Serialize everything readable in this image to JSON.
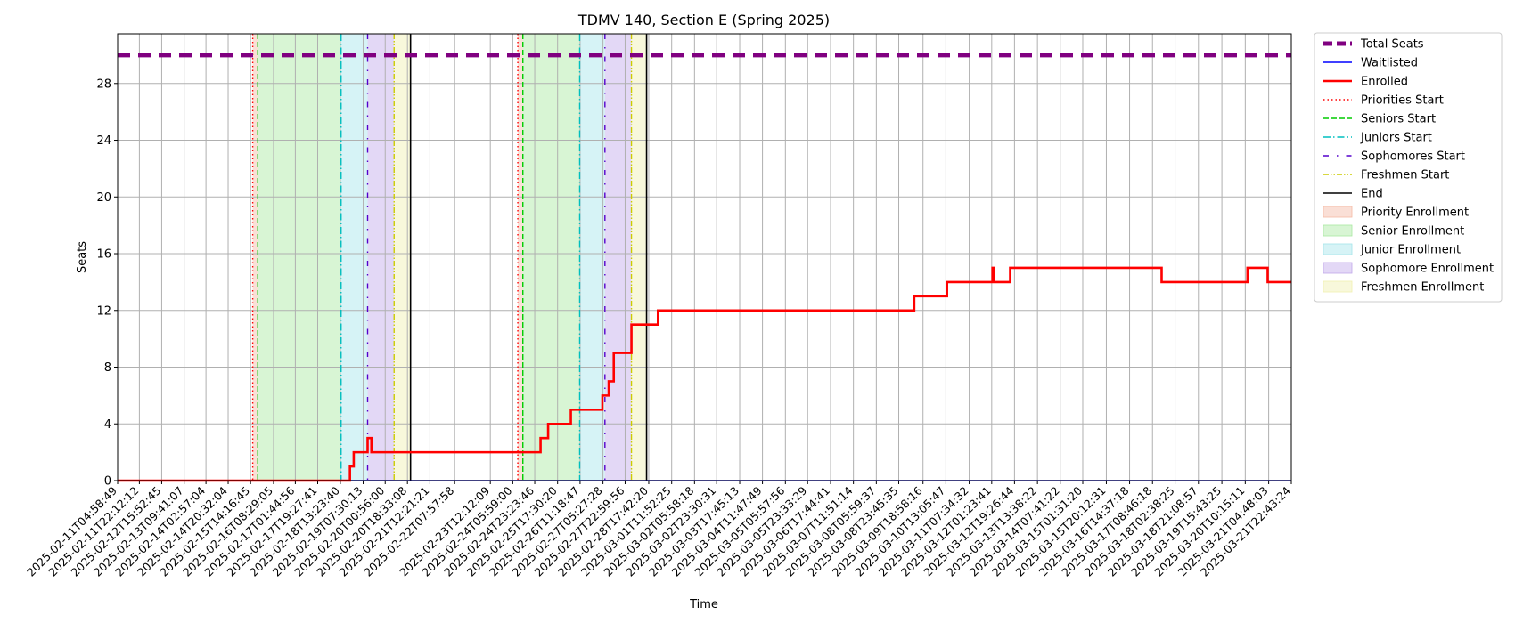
{
  "chart_data": {
    "type": "line",
    "title": "TDMV 140, Section E (Spring 2025)",
    "xlabel": "Time",
    "ylabel": "Seats",
    "ylim": [
      0,
      31.5
    ],
    "yticks": [
      0,
      4,
      8,
      12,
      16,
      20,
      24,
      28
    ],
    "xticks": [
      "2025-02-11T04:58:49",
      "2025-02-11T22:12:12",
      "2025-02-12T15:52:45",
      "2025-02-13T09:41:07",
      "2025-02-14T02:57:04",
      "2025-02-14T20:32:04",
      "2025-02-15T14:16:45",
      "2025-02-16T08:29:05",
      "2025-02-17T01:44:56",
      "2025-02-17T19:27:41",
      "2025-02-18T13:23:40",
      "2025-02-19T07:30:13",
      "2025-02-20T00:56:00",
      "2025-02-20T18:33:08",
      "2025-02-21T12:21:21",
      "2025-02-22T07:57:58",
      "2025-02-23T12:12:09",
      "2025-02-24T05:59:00",
      "2025-02-24T23:23:46",
      "2025-02-25T17:30:20",
      "2025-02-26T11:18:47",
      "2025-02-27T05:27:28",
      "2025-02-27T22:59:56",
      "2025-02-28T17:42:20",
      "2025-03-01T11:52:25",
      "2025-03-02T05:58:18",
      "2025-03-02T23:30:31",
      "2025-03-03T17:45:13",
      "2025-03-04T11:47:49",
      "2025-03-05T05:57:56",
      "2025-03-05T23:33:29",
      "2025-03-06T17:44:41",
      "2025-03-07T11:51:14",
      "2025-03-08T05:59:37",
      "2025-03-08T23:45:35",
      "2025-03-09T18:58:16",
      "2025-03-10T13:05:47",
      "2025-03-11T07:34:32",
      "2025-03-12T01:23:41",
      "2025-03-12T19:26:44",
      "2025-03-13T13:38:22",
      "2025-03-14T07:41:22",
      "2025-03-15T01:31:20",
      "2025-03-15T20:12:31",
      "2025-03-16T14:37:18",
      "2025-03-17T08:46:18",
      "2025-03-18T02:38:25",
      "2025-03-18T21:08:57",
      "2025-03-19T15:43:25",
      "2025-03-20T10:15:11",
      "2025-03-21T04:48:03",
      "2025-03-21T22:43:24"
    ],
    "x_range": [
      "2025-02-11T04:58:49",
      "2025-03-21T22:43:24"
    ],
    "grid": true,
    "legend_position": "outside right",
    "series": [
      {
        "name": "Total Seats",
        "color": "#800080",
        "style": "dashed-thick",
        "points": [
          [
            "2025-02-11T04:58:49",
            30
          ],
          [
            "2025-03-21T22:43:24",
            30
          ]
        ]
      },
      {
        "name": "Waitlisted",
        "color": "#0000ff",
        "style": "solid",
        "points": [
          [
            "2025-02-11T04:58:49",
            0
          ],
          [
            "2025-03-21T22:43:24",
            0
          ]
        ]
      },
      {
        "name": "Enrolled",
        "color": "#ff0000",
        "style": "solid-thick",
        "step": true,
        "points": [
          [
            "2025-02-11T04:58:49",
            0
          ],
          [
            "2025-02-18T19:00:00",
            0
          ],
          [
            "2025-02-18T21:00:00",
            1
          ],
          [
            "2025-02-19T00:00:00",
            2
          ],
          [
            "2025-02-19T11:00:00",
            3
          ],
          [
            "2025-02-19T14:00:00",
            2
          ],
          [
            "2025-02-25T04:00:00",
            3
          ],
          [
            "2025-02-25T10:00:00",
            4
          ],
          [
            "2025-02-26T04:00:00",
            5
          ],
          [
            "2025-02-27T05:00:00",
            6
          ],
          [
            "2025-02-27T10:00:00",
            7
          ],
          [
            "2025-02-27T14:00:00",
            9
          ],
          [
            "2025-02-28T04:00:00",
            11
          ],
          [
            "2025-03-01T01:00:00",
            12
          ],
          [
            "2025-03-09T12:00:00",
            13
          ],
          [
            "2025-03-10T14:00:00",
            14
          ],
          [
            "2025-03-12T02:00:00",
            15
          ],
          [
            "2025-03-12T03:00:00",
            14
          ],
          [
            "2025-03-12T16:00:00",
            15
          ],
          [
            "2025-03-17T16:00:00",
            14
          ],
          [
            "2025-03-20T12:00:00",
            15
          ],
          [
            "2025-03-21T04:00:00",
            14
          ],
          [
            "2025-03-21T22:43:24",
            14
          ]
        ]
      }
    ],
    "vertical_lines": [
      {
        "name": "Priorities Start",
        "color": "#ff0000",
        "style": "dotted",
        "x": [
          "2025-02-15T16:00:00",
          "2025-02-24T10:00:00"
        ]
      },
      {
        "name": "Seniors Start",
        "color": "#00cc00",
        "style": "dashed",
        "x": [
          "2025-02-15T20:00:00",
          "2025-02-24T14:00:00"
        ]
      },
      {
        "name": "Juniors Start",
        "color": "#00bfbf",
        "style": "dashdot",
        "x": [
          "2025-02-18T14:00:00",
          "2025-02-26T11:00:00"
        ]
      },
      {
        "name": "Sophomores Start",
        "color": "#5500cc",
        "style": "loose-dashdot",
        "x": [
          "2025-02-19T11:00:00",
          "2025-02-27T07:00:00"
        ]
      },
      {
        "name": "Freshmen Start",
        "color": "#cccc00",
        "style": "dashdotdot",
        "x": [
          "2025-02-20T08:00:00",
          "2025-02-28T04:00:00"
        ]
      },
      {
        "name": "End",
        "color": "#000000",
        "style": "solid",
        "x": [
          "2025-02-20T21:00:00",
          "2025-02-28T16:00:00"
        ]
      }
    ],
    "regions": [
      {
        "name": "Priority Enrollment",
        "color": "#f5b9a3",
        "spans": [
          [
            "2025-02-15T16:00:00",
            "2025-02-15T20:00:00"
          ],
          [
            "2025-02-24T10:00:00",
            "2025-02-24T14:00:00"
          ]
        ]
      },
      {
        "name": "Senior Enrollment",
        "color": "#a9e8a0",
        "spans": [
          [
            "2025-02-15T20:00:00",
            "2025-02-18T14:00:00"
          ],
          [
            "2025-02-24T14:00:00",
            "2025-02-26T11:00:00"
          ]
        ]
      },
      {
        "name": "Junior Enrollment",
        "color": "#a3e4ea",
        "spans": [
          [
            "2025-02-18T14:00:00",
            "2025-02-19T11:00:00"
          ],
          [
            "2025-02-26T11:00:00",
            "2025-02-27T07:00:00"
          ]
        ]
      },
      {
        "name": "Sophomore Enrollment",
        "color": "#c0a8ea",
        "spans": [
          [
            "2025-02-19T11:00:00",
            "2025-02-20T08:00:00"
          ],
          [
            "2025-02-27T07:00:00",
            "2025-02-28T04:00:00"
          ]
        ]
      },
      {
        "name": "Freshmen Enrollment",
        "color": "#f0f0b0",
        "spans": [
          [
            "2025-02-20T08:00:00",
            "2025-02-20T21:00:00"
          ],
          [
            "2025-02-28T04:00:00",
            "2025-02-28T16:00:00"
          ]
        ]
      }
    ]
  }
}
